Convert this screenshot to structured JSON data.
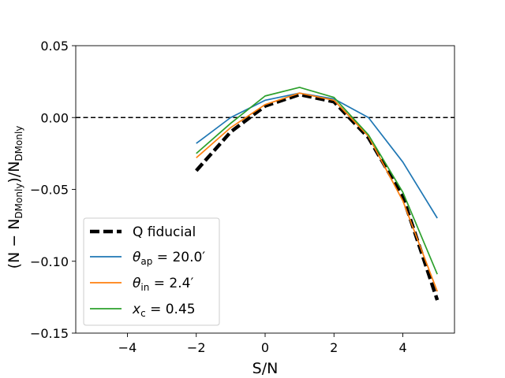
{
  "chart_data": {
    "type": "line",
    "xlabel": "S/N",
    "ylabel_parts": {
      "main": "(N − N",
      "sub1": "DMonly",
      "mid": ")/N",
      "sub2": "DMonly"
    },
    "xlim": [
      -5.5,
      5.5
    ],
    "ylim": [
      -0.15,
      0.05
    ],
    "xticks": [
      -4,
      -2,
      0,
      2,
      4
    ],
    "xtick_labels": [
      "−4",
      "−2",
      "0",
      "2",
      "4"
    ],
    "yticks": [
      -0.15,
      -0.1,
      -0.05,
      0.0,
      0.05
    ],
    "ytick_labels": [
      "−0.15",
      "−0.10",
      "−0.05",
      "0.00",
      "0.05"
    ],
    "reference_line": {
      "y": 0.0,
      "style": "dashed",
      "color": "#000000"
    },
    "x": [
      -2,
      -1,
      0,
      1,
      2,
      3,
      4,
      5
    ],
    "series": [
      {
        "name": "Q fiducial",
        "color": "#000000",
        "style": "dashed-thick",
        "values": [
          -0.037,
          -0.01,
          0.008,
          0.016,
          0.011,
          -0.014,
          -0.055,
          -0.127
        ]
      },
      {
        "name": "theta_ap = 20.0'",
        "color": "#1f77b4",
        "style": "solid",
        "values": [
          -0.018,
          0.0,
          0.012,
          0.017,
          0.013,
          0.0,
          -0.031,
          -0.07
        ]
      },
      {
        "name": "theta_in = 2.4'",
        "color": "#ff7f0e",
        "style": "solid",
        "values": [
          -0.028,
          -0.007,
          0.009,
          0.017,
          0.012,
          -0.013,
          -0.058,
          -0.121
        ]
      },
      {
        "name": "x_c = 0.45",
        "color": "#2ca02c",
        "style": "solid",
        "values": [
          -0.025,
          -0.004,
          0.015,
          0.021,
          0.014,
          -0.012,
          -0.052,
          -0.109
        ]
      }
    ],
    "legend": {
      "position": "lower-left",
      "entries": [
        {
          "label": "Q fiducial"
        },
        {
          "sym": "θ",
          "sub": "ap",
          "rest": " = 20.0′"
        },
        {
          "sym": "θ",
          "sub": "in",
          "rest": " = 2.4′"
        },
        {
          "sym": "x",
          "sub": "c",
          "rest": " = 0.45"
        }
      ]
    }
  }
}
